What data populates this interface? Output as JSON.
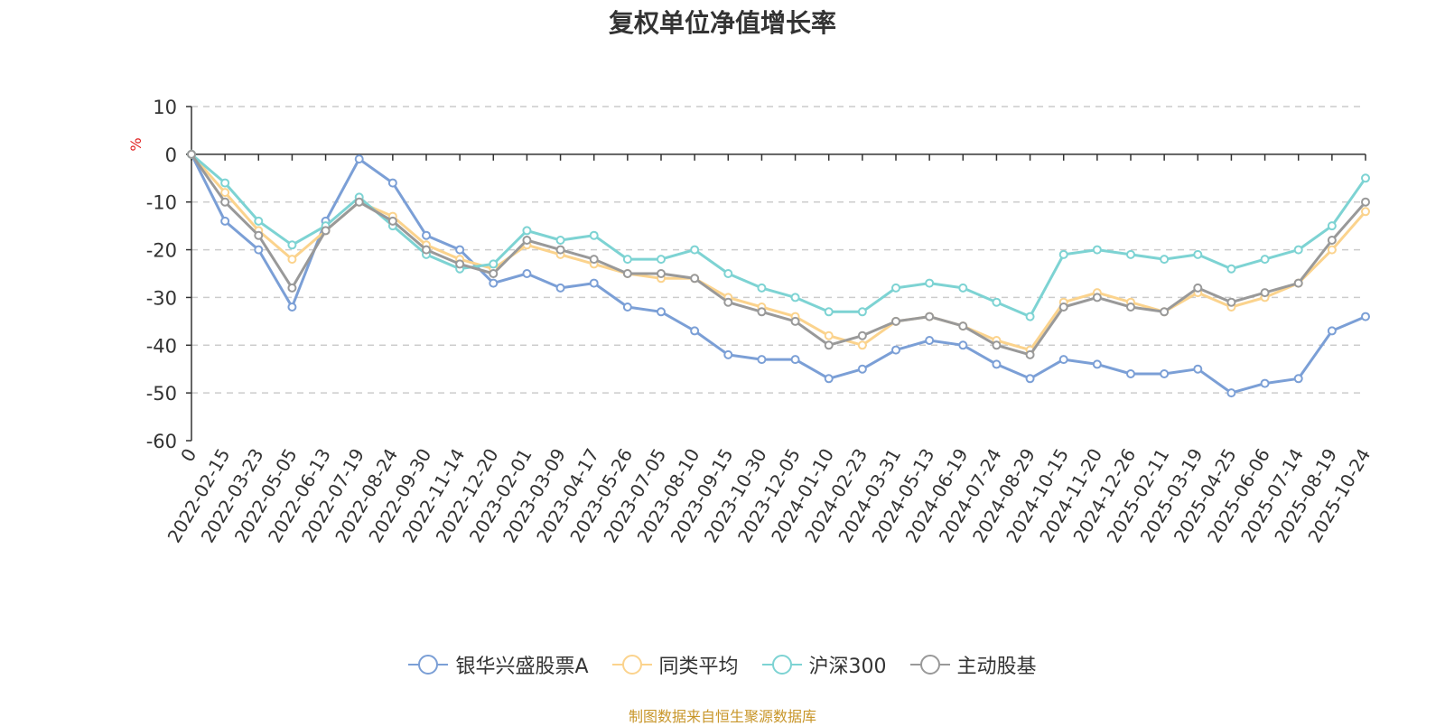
{
  "chart_data": {
    "type": "line",
    "title": "复权单位净值增长率",
    "ylabel": "%",
    "xlabel": "",
    "ylim": [
      -60,
      10
    ],
    "y_ticks": [
      10,
      0,
      -10,
      -20,
      -30,
      -40,
      -50,
      -60
    ],
    "x_tick_labels": [
      "0",
      "2022-02-15",
      "2022-03-23",
      "2022-05-05",
      "2022-06-13",
      "2022-07-19",
      "2022-08-24",
      "2022-09-30",
      "2022-11-14",
      "2022-12-20",
      "2023-02-01",
      "2023-03-09",
      "2023-04-17",
      "2023-05-26",
      "2023-07-05",
      "2023-08-10",
      "2023-09-15",
      "2023-10-30",
      "2023-12-05",
      "2024-01-10",
      "2024-02-23",
      "2024-03-31",
      "2024-05-13",
      "2024-06-19",
      "2024-07-24",
      "2024-08-29",
      "2024-10-15",
      "2024-11-20",
      "2024-12-26",
      "2025-02-11",
      "2025-03-19",
      "2025-04-25",
      "2025-06-06",
      "2025-07-14",
      "2025-08-19",
      "2025-10-24"
    ],
    "x": [
      0,
      1,
      2,
      3,
      4,
      5,
      6,
      7,
      8,
      9,
      10,
      11,
      12,
      13,
      14,
      15,
      16,
      17,
      18,
      19,
      20,
      21,
      22,
      23,
      24,
      25,
      26,
      27,
      28,
      29,
      30,
      31,
      32,
      33,
      34,
      35
    ],
    "series": [
      {
        "name": "银华兴盛股票A",
        "color": "#7b9fd6",
        "values": [
          0,
          -14,
          -20,
          -32,
          -14,
          -1,
          -6,
          -17,
          -20,
          -27,
          -25,
          -28,
          -27,
          -32,
          -33,
          -37,
          -42,
          -43,
          -43,
          -47,
          -45,
          -41,
          -39,
          -40,
          -44,
          -47,
          -43,
          -44,
          -46,
          -46,
          -45,
          -50,
          -48,
          -47,
          -37,
          -34
        ]
      },
      {
        "name": "同类平均",
        "color": "#fbd38d",
        "values": [
          0,
          -8,
          -16,
          -22,
          -16,
          -10,
          -13,
          -19,
          -22,
          -24,
          -19,
          -21,
          -23,
          -25,
          -26,
          -26,
          -30,
          -32,
          -34,
          -38,
          -40,
          -35,
          -34,
          -36,
          -39,
          -41,
          -31,
          -29,
          -31,
          -33,
          -29,
          -32,
          -30,
          -27,
          -20,
          -12
        ]
      },
      {
        "name": "沪深300",
        "color": "#7dd3d3",
        "values": [
          0,
          -6,
          -14,
          -19,
          -15,
          -9,
          -15,
          -21,
          -24,
          -23,
          -16,
          -18,
          -17,
          -22,
          -22,
          -20,
          -25,
          -28,
          -30,
          -33,
          -33,
          -28,
          -27,
          -28,
          -31,
          -34,
          -21,
          -20,
          -21,
          -22,
          -21,
          -24,
          -22,
          -20,
          -15,
          -5
        ]
      },
      {
        "name": "主动股基",
        "color": "#999999",
        "values": [
          0,
          -10,
          -17,
          -28,
          -16,
          -10,
          -14,
          -20,
          -23,
          -25,
          -18,
          -20,
          -22,
          -25,
          -25,
          -26,
          -31,
          -33,
          -35,
          -40,
          -38,
          -35,
          -34,
          -36,
          -40,
          -42,
          -32,
          -30,
          -32,
          -33,
          -28,
          -31,
          -29,
          -27,
          -18,
          -10
        ]
      }
    ],
    "legend_position": "bottom-center"
  },
  "source_text": "制图数据来自恒生聚源数据库"
}
